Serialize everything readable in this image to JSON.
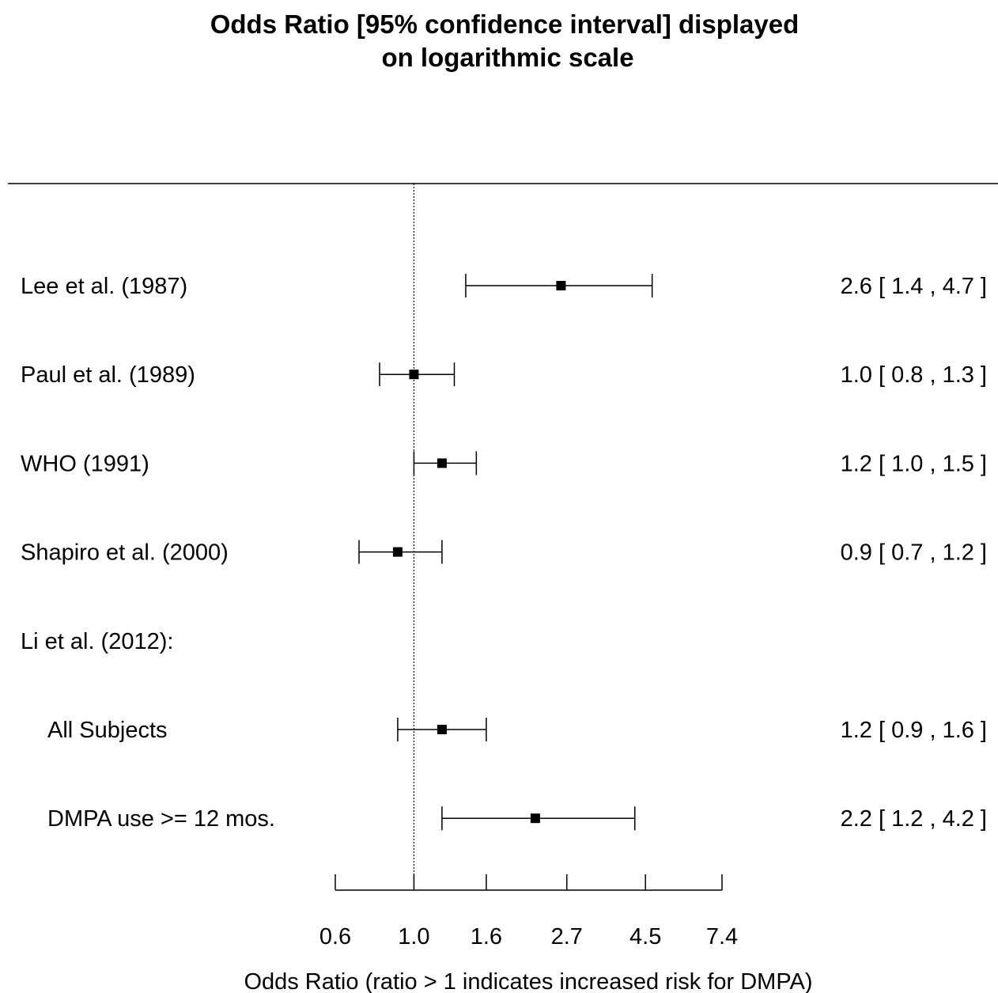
{
  "chart_data": {
    "type": "forest",
    "title_lines": [
      "Odds Ratio [95% confidence interval] displayed",
      "on logarithmic scale"
    ],
    "xlabel": "Odds Ratio (ratio > 1 indicates increased risk for DMPA)",
    "x_scale": "log",
    "reference_line": 1.0,
    "xlim": [
      0.6,
      7.4
    ],
    "x_ticks": [
      {
        "value": 0.6,
        "label": "0.6"
      },
      {
        "value": 1.0,
        "label": "1.0"
      },
      {
        "value": 1.6,
        "label": "1.6"
      },
      {
        "value": 2.7,
        "label": "2.7"
      },
      {
        "value": 4.5,
        "label": "4.5"
      },
      {
        "value": 7.4,
        "label": "7.4"
      }
    ],
    "rows": [
      {
        "label": "Lee et al. (1987)",
        "or": 2.6,
        "lo": 1.4,
        "hi": 4.7,
        "text": "2.6 [ 1.4 , 4.7 ]"
      },
      {
        "label": "Paul et al. (1989)",
        "or": 1.0,
        "lo": 0.8,
        "hi": 1.3,
        "text": "1.0 [ 0.8 , 1.3 ]"
      },
      {
        "label": "WHO (1991)",
        "or": 1.2,
        "lo": 1.0,
        "hi": 1.5,
        "text": "1.2 [ 1.0 , 1.5 ]"
      },
      {
        "label": "Shapiro et al. (2000)",
        "or": 0.9,
        "lo": 0.7,
        "hi": 1.2,
        "text": "0.9 [ 0.7 , 1.2 ]"
      },
      {
        "label": "Li et al. (2012):",
        "header": true
      },
      {
        "label": "All Subjects",
        "or": 1.2,
        "lo": 0.9,
        "hi": 1.6,
        "text": "1.2 [ 0.9 , 1.6 ]",
        "indent": true
      },
      {
        "label": "DMPA use >= 12 mos.",
        "or": 2.2,
        "lo": 1.2,
        "hi": 4.2,
        "text": "2.2 [ 1.2 , 4.2 ]",
        "indent": true
      }
    ]
  }
}
